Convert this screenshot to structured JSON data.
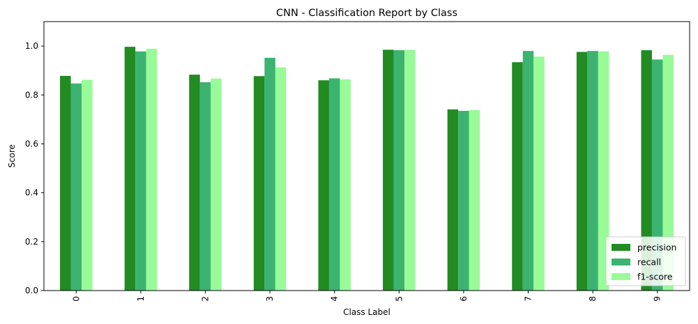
{
  "chart_data": {
    "type": "bar",
    "title": "CNN - Classification Report by Class",
    "xlabel": "Class Label",
    "ylabel": "Score",
    "ylim": [
      0,
      1.1
    ],
    "yticks": [
      "0.0",
      "0.2",
      "0.4",
      "0.6",
      "0.8",
      "1.0"
    ],
    "grid": false,
    "legend_position": "bottom-right",
    "categories": [
      "0",
      "1",
      "2",
      "3",
      "4",
      "5",
      "6",
      "7",
      "8",
      "9"
    ],
    "series": [
      {
        "name": "precision",
        "color": "#228B22",
        "values": [
          0.878,
          0.997,
          0.883,
          0.877,
          0.86,
          0.985,
          0.741,
          0.934,
          0.976,
          0.983
        ]
      },
      {
        "name": "recall",
        "color": "#3CB371",
        "values": [
          0.847,
          0.978,
          0.852,
          0.952,
          0.868,
          0.983,
          0.735,
          0.98,
          0.98,
          0.945
        ]
      },
      {
        "name": "f1-score",
        "color": "#98FB98",
        "values": [
          0.862,
          0.989,
          0.867,
          0.913,
          0.864,
          0.984,
          0.738,
          0.957,
          0.978,
          0.964
        ]
      }
    ]
  }
}
